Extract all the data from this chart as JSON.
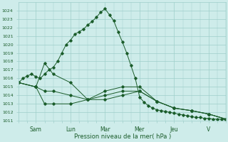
{
  "xlabel": "Pression niveau de la mer( hPa )",
  "bg_color": "#ceecea",
  "grid_color": "#9ececa",
  "line_color": "#1a5c2a",
  "ylim": [
    1011,
    1025
  ],
  "yticks": [
    1011,
    1012,
    1013,
    1014,
    1015,
    1016,
    1017,
    1018,
    1019,
    1020,
    1021,
    1022,
    1023,
    1024
  ],
  "day_labels": [
    "Sam",
    "Lun",
    "Mar",
    "Mer",
    "Jeu",
    "V"
  ],
  "day_positions": [
    24,
    72,
    120,
    168,
    216,
    264
  ],
  "xlim": [
    0,
    288
  ],
  "series": [
    {
      "x": [
        0,
        6,
        12,
        18,
        24,
        30,
        36,
        42,
        48,
        54,
        60,
        66,
        72,
        78,
        84,
        90,
        96,
        102,
        108,
        114,
        120,
        126,
        132,
        138,
        144,
        150,
        156,
        162,
        168,
        174,
        180,
        186,
        192,
        198,
        204,
        210,
        216,
        222,
        228,
        234,
        240,
        246,
        252,
        258,
        264,
        270,
        276,
        282,
        288
      ],
      "y": [
        1015.5,
        1016.0,
        1016.3,
        1016.5,
        1016.2,
        1016.0,
        1016.5,
        1017.0,
        1017.3,
        1018.0,
        1019.0,
        1020.0,
        1020.5,
        1021.2,
        1021.5,
        1021.8,
        1022.3,
        1022.7,
        1023.2,
        1023.8,
        1024.2,
        1023.5,
        1022.8,
        1021.5,
        1020.3,
        1019.0,
        1017.5,
        1016.0,
        1013.8,
        1013.2,
        1012.8,
        1012.5,
        1012.3,
        1012.2,
        1012.1,
        1012.0,
        1011.9,
        1011.8,
        1011.7,
        1011.6,
        1011.5,
        1011.4,
        1011.4,
        1011.3,
        1011.3,
        1011.2,
        1011.2,
        1011.2,
        1011.1
      ]
    },
    {
      "x": [
        0,
        24,
        36,
        48,
        72,
        96,
        120,
        144,
        168,
        192,
        216,
        240,
        264,
        288
      ],
      "y": [
        1015.5,
        1015.0,
        1014.5,
        1014.5,
        1014.0,
        1013.5,
        1014.5,
        1015.0,
        1015.0,
        1013.3,
        1012.5,
        1012.2,
        1011.8,
        1011.2
      ]
    },
    {
      "x": [
        0,
        24,
        36,
        48,
        72,
        96,
        120,
        144,
        168,
        192,
        216,
        240,
        264,
        288
      ],
      "y": [
        1015.5,
        1015.0,
        1017.8,
        1016.5,
        1015.5,
        1013.5,
        1014.0,
        1014.5,
        1014.5,
        1013.3,
        1012.5,
        1012.2,
        1011.8,
        1011.2
      ]
    },
    {
      "x": [
        0,
        24,
        36,
        48,
        72,
        96,
        120,
        144,
        168,
        192,
        216,
        240,
        264,
        288
      ],
      "y": [
        1015.5,
        1015.0,
        1013.0,
        1013.0,
        1013.0,
        1013.5,
        1013.5,
        1014.0,
        1014.5,
        1013.3,
        1012.5,
        1012.2,
        1011.8,
        1011.2
      ]
    }
  ]
}
